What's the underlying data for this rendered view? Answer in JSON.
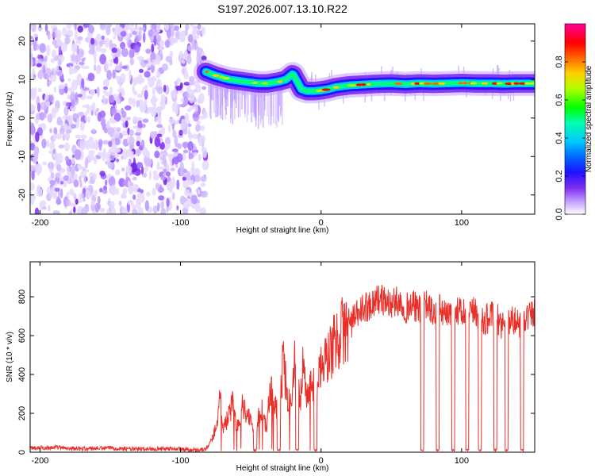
{
  "title": "S197.2026.007.13.10.R22",
  "chart_data": [
    {
      "type": "heatmap",
      "xlabel": "Height of straight line (km)",
      "ylabel": "Frequency (Hz)",
      "xlim": [
        -207,
        152
      ],
      "ylim": [
        -25,
        24.5
      ],
      "x_ticks": [
        -200,
        -100,
        0,
        100
      ],
      "y_ticks": [
        -20,
        -10,
        0,
        10,
        20
      ],
      "noise_region_x": [
        -207,
        -82
      ],
      "ridge": {
        "description": "Frequency ridge of the signal",
        "x": [
          -82,
          -75,
          -65,
          -55,
          -45,
          -38,
          -30,
          -25,
          -20,
          -17,
          -14,
          -10,
          -5,
          0,
          5,
          10,
          20,
          30,
          40,
          50,
          60,
          70,
          80,
          90,
          100,
          110,
          120,
          130,
          140,
          152
        ],
        "freq": [
          12.0,
          11.0,
          10.0,
          9.5,
          9.0,
          9.0,
          9.5,
          10.0,
          11.5,
          9.5,
          7.5,
          7.0,
          7.0,
          7.2,
          7.5,
          8.0,
          8.5,
          8.7,
          8.9,
          9.0,
          8.8,
          9.0,
          8.9,
          9.0,
          9.1,
          9.0,
          9.0,
          8.9,
          9.0,
          9.0
        ]
      },
      "colorbar": {
        "label": "Normalized spectral amplitude",
        "range": [
          0.0,
          1.0
        ],
        "ticks": [
          0.0,
          0.2,
          0.4,
          0.6,
          0.8
        ],
        "tick_labels": [
          "0.0",
          "0.2",
          "0.4",
          "0.6",
          "0.8"
        ]
      }
    },
    {
      "type": "line",
      "xlabel": "Height of straight line (km)",
      "ylabel": "SNR (10 * v/v)",
      "xlim": [
        -207,
        152
      ],
      "ylim": [
        0,
        980
      ],
      "x_ticks": [
        -200,
        -100,
        0,
        100
      ],
      "y_ticks": [
        0,
        200,
        400,
        600,
        800
      ],
      "series": [
        {
          "name": "SNR",
          "color": "#e8302a",
          "x": [
            -207,
            -190,
            -170,
            -150,
            -130,
            -110,
            -90,
            -82,
            -78,
            -74,
            -72,
            -70,
            -66,
            -63,
            -60,
            -56,
            -52,
            -48,
            -45,
            -42,
            -39,
            -36,
            -33,
            -30,
            -27,
            -24,
            -21,
            -19,
            -17,
            -15,
            -13,
            -11,
            -9,
            -6,
            -4,
            -2,
            0,
            5,
            10,
            15,
            20,
            25,
            30,
            35,
            40,
            45,
            50,
            55,
            60,
            65,
            70,
            75,
            80,
            85,
            90,
            95,
            100,
            105,
            110,
            115,
            120,
            125,
            130,
            135,
            140,
            145,
            152
          ],
          "values": [
            20,
            25,
            18,
            22,
            15,
            20,
            12,
            15,
            60,
            150,
            300,
            120,
            180,
            250,
            130,
            240,
            200,
            110,
            180,
            210,
            120,
            330,
            260,
            200,
            470,
            300,
            210,
            520,
            360,
            250,
            470,
            300,
            280,
            360,
            330,
            400,
            430,
            490,
            570,
            620,
            650,
            700,
            740,
            760,
            790,
            780,
            760,
            780,
            740,
            760,
            730,
            760,
            710,
            740,
            690,
            730,
            720,
            700,
            730,
            660,
            700,
            690,
            650,
            680,
            660,
            690,
            720
          ]
        }
      ],
      "dropouts_x": [
        -47,
        -30,
        -17,
        -4,
        72,
        83,
        94,
        104,
        113,
        124,
        132,
        143
      ]
    }
  ]
}
